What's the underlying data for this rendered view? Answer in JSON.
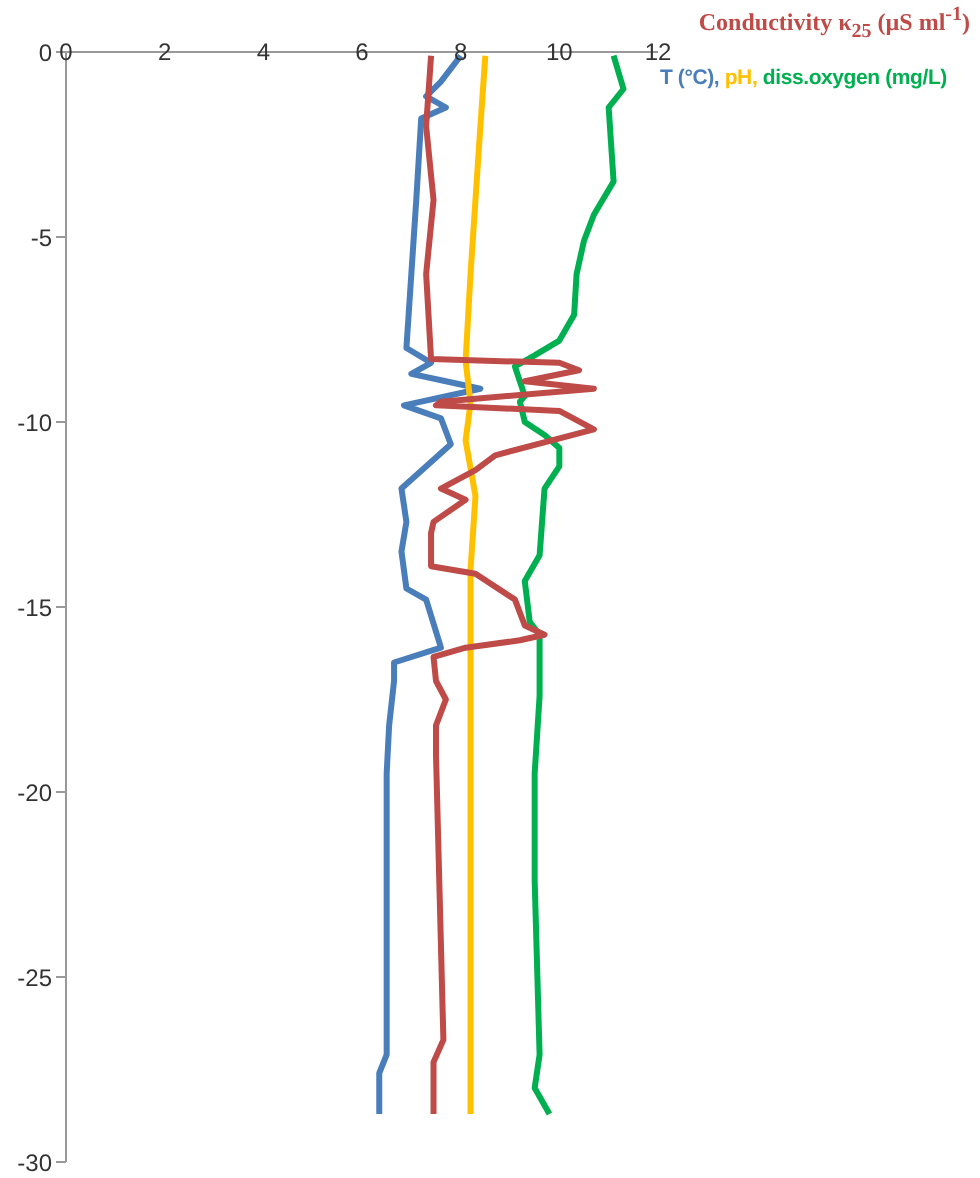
{
  "chart_data": {
    "type": "line",
    "title": "Conductivity κ$_{25}$ (µS ml$^{-1}$)",
    "xlabel": "T (°C), pH, diss.oxygen (mg/L)",
    "xlim": [
      0,
      12
    ],
    "xticks": [
      0,
      2,
      4,
      6,
      8,
      10,
      12
    ],
    "ylim": [
      -30,
      0
    ],
    "yticks": [
      0,
      -5,
      -10,
      -15,
      -20,
      -25,
      -30
    ],
    "grid": false,
    "legend": false,
    "marker": "none",
    "line_style": "solid",
    "series": [
      {
        "color": "#4a7ebb",
        "x": [
          8.0,
          7.6,
          7.3,
          7.7,
          7.2,
          7.1,
          7.0,
          6.9,
          7.4,
          7.0,
          7.7,
          8.4,
          6.85,
          7.6,
          7.8,
          6.8,
          6.9,
          6.8,
          6.9,
          7.3,
          7.6,
          6.65,
          6.65,
          6.55,
          6.5,
          6.5,
          6.35,
          6.35
        ],
        "values": [
          -0.1,
          -0.8,
          -1.2,
          -1.5,
          -1.8,
          -4,
          -6,
          -8.0,
          -8.4,
          -8.7,
          -8.9,
          -9.1,
          -9.55,
          -9.9,
          -10.6,
          -11.8,
          -12.7,
          -13.5,
          -14.5,
          -14.8,
          -16.1,
          -16.5,
          -17,
          -18.2,
          -19.5,
          -27.1,
          -27.6,
          -28.7
        ]
      },
      {
        "color": "#ffc000",
        "x": [
          8.5,
          8.4,
          8.3,
          8.2,
          8.1,
          8.2,
          8.1,
          8.3,
          8.2,
          8.2,
          8.2
        ],
        "values": [
          -0.1,
          -2,
          -4,
          -6,
          -8.35,
          -9.5,
          -10.5,
          -12,
          -14,
          -18,
          -28.7
        ]
      },
      {
        "color": "#00b050",
        "x": [
          11.1,
          11.3,
          11.0,
          11.1,
          10.7,
          10.5,
          10.35,
          10.3,
          10.0,
          9.5,
          9.1,
          9.2,
          9.3,
          9.2,
          9.3,
          9.7,
          10.0,
          10.0,
          9.7,
          9.6,
          9.3,
          9.4,
          9.6,
          9.6,
          9.5,
          9.5,
          9.6,
          9.5,
          9.8
        ],
        "values": [
          -0.1,
          -1,
          -1.5,
          -3.5,
          -4.4,
          -5.1,
          -6.0,
          -7.1,
          -7.8,
          -8.2,
          -8.5,
          -8.9,
          -9.3,
          -9.45,
          -10.0,
          -10.35,
          -10.7,
          -11.2,
          -11.8,
          -13.6,
          -14.3,
          -15.4,
          -15.75,
          -17.4,
          -19.5,
          -22.4,
          -27.1,
          -28,
          -28.7
        ]
      },
      {
        "color": "#be4b48",
        "x": [
          7.4,
          7.3,
          7.45,
          7.3,
          7.4,
          10.0,
          10.4,
          9.3,
          10.7,
          7.6,
          7.5,
          10.0,
          10.7,
          8.7,
          8.3,
          7.6,
          8.1,
          7.45,
          7.4,
          7.4,
          8.3,
          9.1,
          9.3,
          9.7,
          9.2,
          8.1,
          7.45,
          7.5,
          7.7,
          7.5,
          7.5,
          7.65,
          7.45,
          7.45
        ],
        "values": [
          -0.1,
          -2,
          -4,
          -6,
          -8.3,
          -8.4,
          -8.6,
          -8.9,
          -9.1,
          -9.45,
          -9.55,
          -9.7,
          -10.2,
          -10.9,
          -11.3,
          -11.8,
          -12.1,
          -12.7,
          -13,
          -13.9,
          -14.1,
          -14.8,
          -15.5,
          -15.75,
          -15.9,
          -16.1,
          -16.35,
          -17,
          -17.5,
          -18.2,
          -19,
          -26.7,
          -27.3,
          -28.7
        ]
      }
    ]
  }
}
